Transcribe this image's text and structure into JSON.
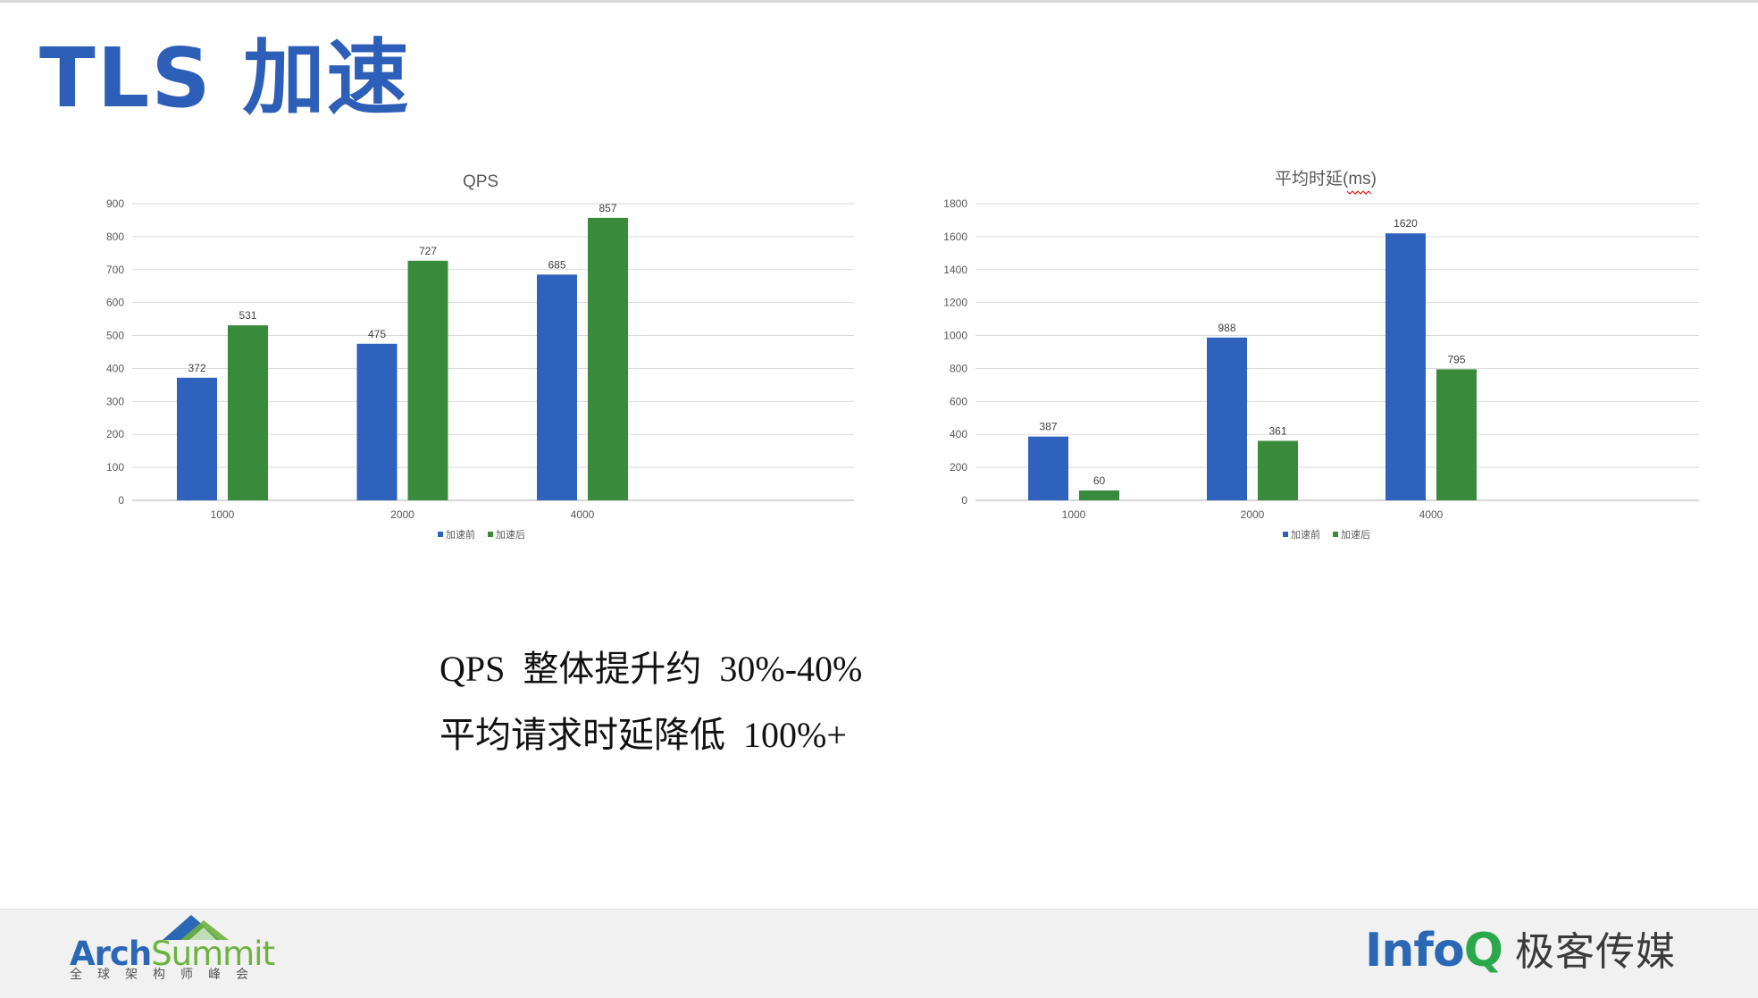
{
  "slide": {
    "title": "TLS 加速",
    "summary_lines": [
      "QPS  整体提升约  30%-40%",
      "平均请求时延降低  100%+"
    ]
  },
  "colors": {
    "accent": "#2e5fb8",
    "series_before": "#2e62bd",
    "series_after": "#3a8a3b"
  },
  "chart_data": [
    {
      "type": "bar",
      "title": "QPS",
      "categories": [
        "1000",
        "2000",
        "4000"
      ],
      "series": [
        {
          "name": "加速前",
          "values": [
            372,
            475,
            685
          ],
          "color": "#2e62bd"
        },
        {
          "name": "加速后",
          "values": [
            531,
            727,
            857
          ],
          "color": "#3a8a3b"
        }
      ],
      "ylim": [
        0,
        900
      ],
      "yticks": [
        0,
        100,
        200,
        300,
        400,
        500,
        600,
        700,
        800,
        900
      ],
      "grid": true,
      "legend": "bottom"
    },
    {
      "type": "bar",
      "title": "平均时延(ms)",
      "categories": [
        "1000",
        "2000",
        "4000"
      ],
      "series": [
        {
          "name": "加速前",
          "values": [
            387,
            988,
            1620
          ],
          "color": "#2e62bd"
        },
        {
          "name": "加速后",
          "values": [
            60,
            361,
            795
          ],
          "color": "#3a8a3b"
        }
      ],
      "ylim": [
        0,
        1800
      ],
      "yticks": [
        0,
        200,
        400,
        600,
        800,
        1000,
        1200,
        1400,
        1600,
        1800
      ],
      "grid": true,
      "legend": "bottom"
    }
  ],
  "footer": {
    "left_logo": {
      "name_part1": "Arch",
      "name_part2": "Summit",
      "subtitle": "全球架构师峰会"
    },
    "right_logo": {
      "name_part1": "Info",
      "name_part2": "Q",
      "chinese": "极客传媒"
    }
  }
}
